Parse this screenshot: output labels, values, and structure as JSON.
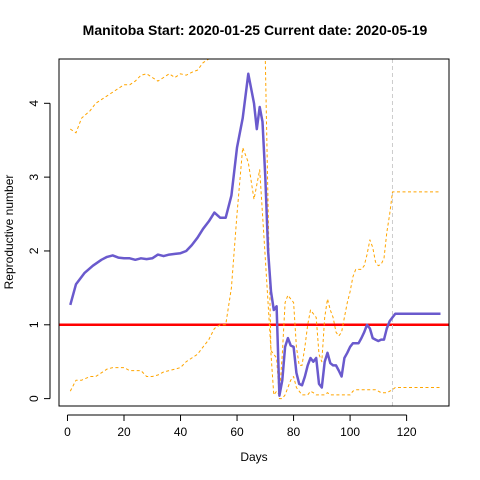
{
  "chart_data": {
    "type": "line",
    "title": "Manitoba Start:  2020-01-25   Current date:  2020-05-19",
    "xlabel": "Days",
    "ylabel": "Reproductive number",
    "xlim": [
      -3,
      135
    ],
    "ylim": [
      -0.1,
      4.6
    ],
    "x_ticks": [
      0,
      20,
      40,
      60,
      80,
      100,
      120
    ],
    "y_ticks": [
      0,
      1,
      2,
      3,
      4
    ],
    "grid": false,
    "reference_lines": [
      {
        "orientation": "horizontal",
        "value": 1,
        "color": "#ff0000",
        "style": "solid"
      },
      {
        "orientation": "vertical",
        "value": 115,
        "color": "#cccccc",
        "style": "dashed"
      }
    ],
    "series": [
      {
        "role": "estimate",
        "color": "#6a5acd",
        "style": "solid",
        "x": [
          1,
          3,
          6,
          9,
          12,
          14,
          16,
          18,
          20,
          22,
          24,
          26,
          28,
          30,
          32,
          34,
          36,
          38,
          40,
          42,
          44,
          46,
          48,
          50,
          52,
          54,
          56,
          58,
          60,
          62,
          64,
          66,
          67,
          68,
          69,
          70,
          71,
          72,
          73,
          74,
          75,
          76,
          77,
          78,
          79,
          80,
          81,
          82,
          83,
          84,
          85,
          86,
          87,
          88,
          89,
          90,
          91,
          92,
          93,
          94,
          95,
          96,
          97,
          98,
          99,
          100,
          101,
          102,
          103,
          104,
          105,
          106,
          107,
          108,
          109,
          110,
          111,
          112,
          113,
          114,
          115,
          116,
          117,
          118,
          120,
          125,
          130,
          132
        ],
        "y": [
          1.27,
          1.55,
          1.7,
          1.8,
          1.88,
          1.92,
          1.94,
          1.91,
          1.9,
          1.9,
          1.88,
          1.9,
          1.89,
          1.9,
          1.95,
          1.93,
          1.95,
          1.96,
          1.97,
          2.0,
          2.08,
          2.18,
          2.3,
          2.4,
          2.52,
          2.45,
          2.45,
          2.75,
          3.4,
          3.8,
          4.4,
          4.0,
          3.65,
          3.95,
          3.75,
          3.0,
          2.0,
          1.45,
          1.2,
          1.25,
          0.04,
          0.25,
          0.7,
          0.82,
          0.72,
          0.7,
          0.35,
          0.2,
          0.18,
          0.3,
          0.45,
          0.55,
          0.5,
          0.55,
          0.2,
          0.15,
          0.5,
          0.62,
          0.48,
          0.45,
          0.45,
          0.38,
          0.3,
          0.55,
          0.62,
          0.7,
          0.75,
          0.75,
          0.75,
          0.82,
          0.9,
          1.0,
          0.95,
          0.82,
          0.8,
          0.78,
          0.8,
          0.8,
          0.95,
          1.05,
          1.1,
          1.15,
          1.15,
          1.15,
          1.15,
          1.15,
          1.15,
          1.15
        ]
      },
      {
        "role": "upper-bound",
        "color": "#ffa500",
        "style": "dashed",
        "x": [
          1,
          3,
          5,
          8,
          10,
          12,
          14,
          16,
          18,
          20,
          22,
          24,
          26,
          28,
          30,
          32,
          34,
          36,
          38,
          40,
          42,
          44,
          46,
          48,
          50,
          52,
          54,
          56,
          58,
          60,
          61,
          62,
          63,
          64,
          65,
          66,
          67,
          68,
          69,
          70,
          71,
          72,
          73,
          74,
          75,
          76,
          77,
          78,
          79,
          80,
          81,
          82,
          83,
          84,
          85,
          86,
          87,
          88,
          89,
          90,
          91,
          92,
          93,
          94,
          95,
          96,
          97,
          98,
          99,
          100,
          101,
          102,
          103,
          104,
          105,
          106,
          107,
          108,
          109,
          110,
          111,
          112,
          113,
          114,
          115,
          116,
          117,
          118,
          120,
          125,
          130,
          132
        ],
        "y": [
          3.65,
          3.6,
          3.8,
          3.9,
          4.0,
          4.05,
          4.1,
          4.15,
          4.2,
          4.25,
          4.25,
          4.3,
          4.38,
          4.4,
          4.35,
          4.3,
          4.35,
          4.4,
          4.35,
          4.4,
          4.38,
          4.42,
          4.45,
          4.55,
          4.6,
          4.6,
          4.6,
          4.6,
          4.6,
          4.6,
          4.6,
          4.6,
          4.6,
          4.6,
          4.6,
          4.6,
          4.6,
          4.6,
          4.6,
          4.6,
          2.6,
          0.6,
          0.05,
          0.1,
          0.05,
          0.6,
          1.3,
          1.4,
          1.35,
          1.3,
          0.7,
          0.45,
          0.45,
          0.7,
          1.0,
          1.2,
          1.15,
          1.1,
          0.6,
          0.5,
          1.1,
          1.35,
          1.2,
          1.1,
          0.9,
          0.85,
          0.9,
          1.1,
          1.3,
          1.45,
          1.65,
          1.75,
          1.75,
          1.75,
          1.8,
          1.95,
          2.15,
          2.05,
          1.85,
          1.8,
          1.82,
          1.9,
          2.25,
          2.5,
          2.8,
          2.8,
          2.8,
          2.8,
          2.8,
          2.8,
          2.8,
          2.8
        ]
      },
      {
        "role": "lower-bound",
        "color": "#ffa500",
        "style": "dashed",
        "x": [
          1,
          3,
          5,
          8,
          10,
          12,
          14,
          16,
          18,
          20,
          22,
          24,
          26,
          28,
          30,
          32,
          34,
          36,
          38,
          40,
          42,
          44,
          46,
          48,
          50,
          52,
          54,
          56,
          58,
          60,
          62,
          64,
          66,
          68,
          70,
          72,
          74,
          75,
          76,
          77,
          78,
          79,
          80,
          81,
          82,
          83,
          84,
          85,
          86,
          87,
          88,
          89,
          90,
          91,
          92,
          93,
          94,
          95,
          96,
          97,
          98,
          99,
          100,
          101,
          102,
          103,
          104,
          105,
          106,
          107,
          108,
          109,
          110,
          111,
          112,
          113,
          114,
          115,
          116,
          117,
          118,
          120,
          125,
          130,
          132
        ],
        "y": [
          0.1,
          0.25,
          0.25,
          0.3,
          0.3,
          0.35,
          0.4,
          0.42,
          0.42,
          0.42,
          0.38,
          0.38,
          0.38,
          0.3,
          0.3,
          0.32,
          0.36,
          0.38,
          0.4,
          0.42,
          0.5,
          0.55,
          0.6,
          0.7,
          0.8,
          0.95,
          1.0,
          1.0,
          1.5,
          2.5,
          3.4,
          3.2,
          2.7,
          3.1,
          1.9,
          0.65,
          0.55,
          0.0,
          0.0,
          0.05,
          0.15,
          0.25,
          0.3,
          0.15,
          0.1,
          0.05,
          0.05,
          0.05,
          0.1,
          0.08,
          0.05,
          0.05,
          0.05,
          0.05,
          0.08,
          0.05,
          0.05,
          0.05,
          0.05,
          0.05,
          0.05,
          0.05,
          0.05,
          0.1,
          0.12,
          0.12,
          0.12,
          0.12,
          0.12,
          0.12,
          0.12,
          0.12,
          0.1,
          0.08,
          0.08,
          0.08,
          0.1,
          0.12,
          0.15,
          0.15,
          0.15,
          0.15,
          0.15,
          0.15,
          0.15
        ]
      }
    ]
  }
}
